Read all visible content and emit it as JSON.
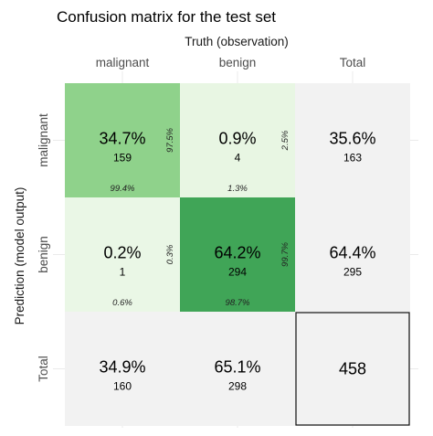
{
  "chart_data": {
    "type": "heatmap",
    "title": "Confusion matrix for the test set",
    "xlabel": "Truth (observation)",
    "ylabel": "Prediction (model output)",
    "columns": [
      "malignant",
      "benign",
      "Total"
    ],
    "rows": [
      "malignant",
      "benign",
      "Total"
    ],
    "cells": [
      {
        "row": "malignant",
        "col": "malignant",
        "percent": "34.7%",
        "count": "159",
        "row_pct": "97.5%",
        "col_pct": "99.4%",
        "color": "#8fd28b"
      },
      {
        "row": "malignant",
        "col": "benign",
        "percent": "0.9%",
        "count": "4",
        "row_pct": "2.5%",
        "col_pct": "1.3%",
        "color": "#e8f6e3"
      },
      {
        "row": "benign",
        "col": "malignant",
        "percent": "0.2%",
        "count": "1",
        "row_pct": "0.3%",
        "col_pct": "0.6%",
        "color": "#eaf7e6"
      },
      {
        "row": "benign",
        "col": "benign",
        "percent": "64.2%",
        "count": "294",
        "row_pct": "99.7%",
        "col_pct": "98.7%",
        "color": "#40a557"
      }
    ],
    "row_totals": [
      {
        "row": "malignant",
        "percent": "35.6%",
        "count": "163"
      },
      {
        "row": "benign",
        "percent": "64.4%",
        "count": "295"
      }
    ],
    "col_totals": [
      {
        "col": "malignant",
        "percent": "34.9%",
        "count": "160"
      },
      {
        "col": "benign",
        "percent": "65.1%",
        "count": "298"
      }
    ],
    "grand_total": "458",
    "total_color": "#f2f2f2"
  }
}
